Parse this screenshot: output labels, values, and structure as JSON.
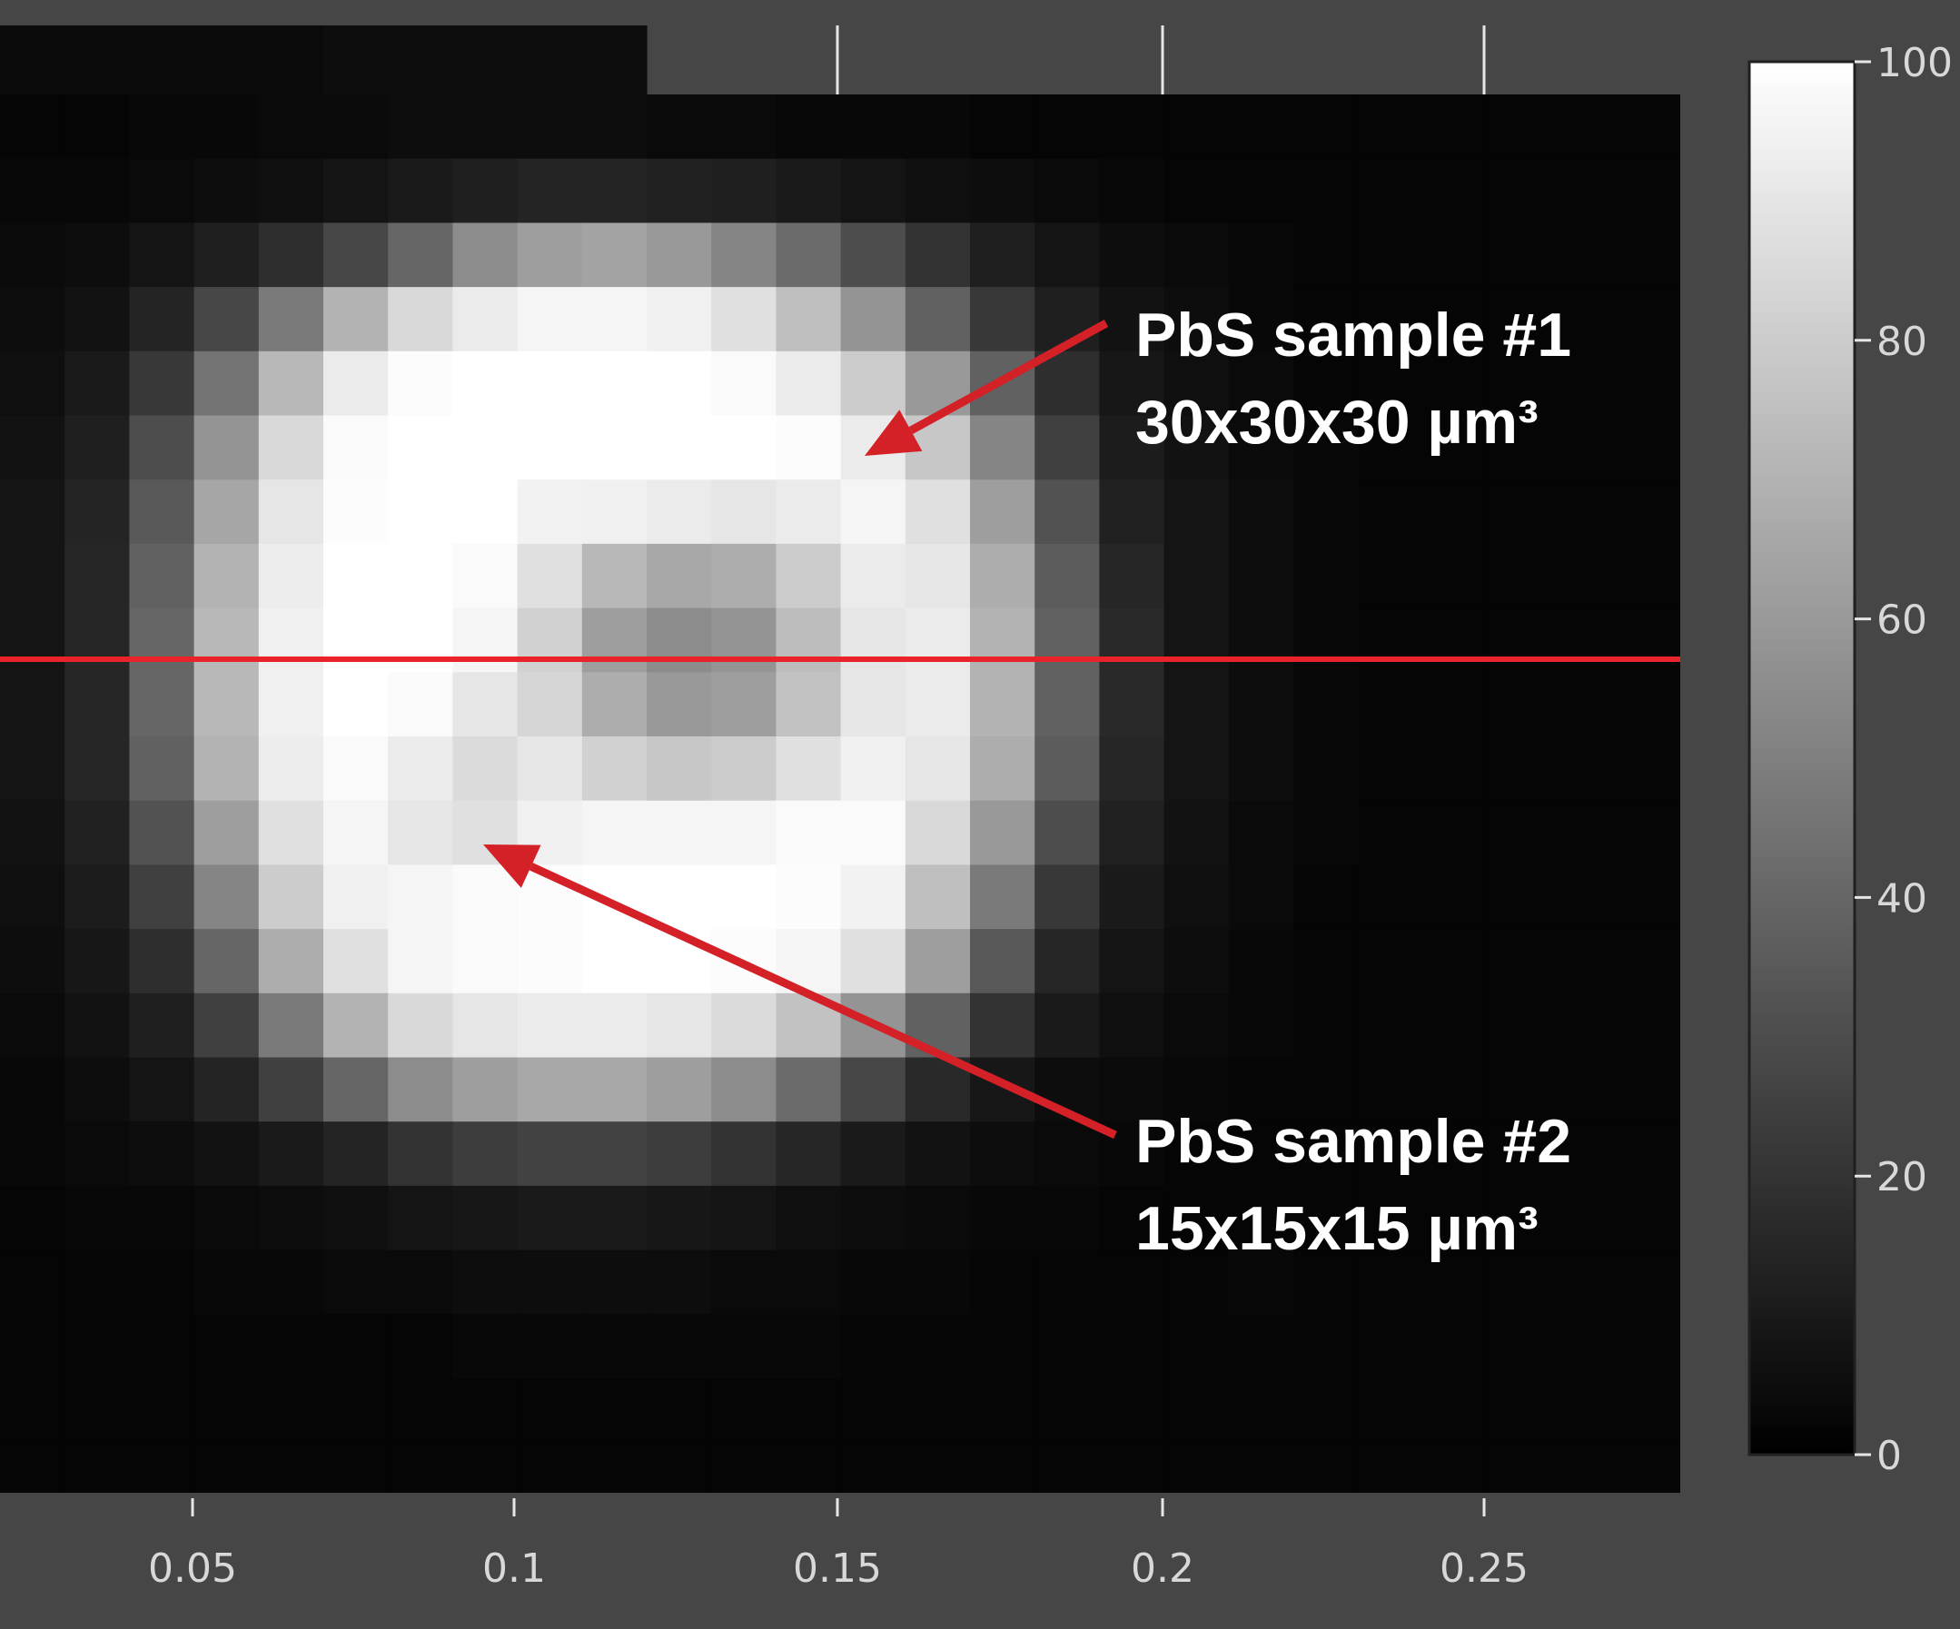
{
  "chart_data": {
    "type": "heatmap",
    "colormap": "gray",
    "background_color": "#464646",
    "xlim": [
      0.0,
      0.28
    ],
    "x_ticks": [
      "0.05",
      "0.1",
      "0.15",
      "0.2",
      "0.25"
    ],
    "colorbar": {
      "range": [
        0,
        100
      ],
      "ticks": [
        "0",
        "20",
        "40",
        "60",
        "80",
        "100"
      ]
    },
    "grid": {
      "cols": 26,
      "rows": 22,
      "values": [
        [
          2,
          2,
          3,
          3,
          4,
          4,
          5,
          5,
          5,
          5,
          4,
          4,
          3,
          3,
          3,
          2,
          2,
          2,
          2,
          2,
          2,
          2,
          2,
          2,
          2,
          2
        ],
        [
          3,
          3,
          4,
          5,
          6,
          8,
          10,
          12,
          14,
          14,
          13,
          12,
          10,
          8,
          6,
          5,
          4,
          3,
          2,
          2,
          2,
          2,
          2,
          2,
          2,
          2
        ],
        [
          4,
          5,
          8,
          12,
          18,
          28,
          40,
          55,
          62,
          64,
          60,
          52,
          42,
          30,
          20,
          12,
          8,
          5,
          4,
          3,
          2,
          2,
          2,
          2,
          2,
          2
        ],
        [
          5,
          7,
          14,
          28,
          48,
          70,
          85,
          92,
          96,
          96,
          94,
          88,
          75,
          58,
          38,
          22,
          12,
          7,
          5,
          3,
          2,
          2,
          2,
          2,
          2,
          2
        ],
        [
          6,
          10,
          22,
          45,
          72,
          92,
          99,
          100,
          100,
          100,
          100,
          98,
          92,
          80,
          60,
          38,
          18,
          9,
          6,
          4,
          2,
          2,
          2,
          2,
          2,
          2
        ],
        [
          7,
          12,
          30,
          58,
          85,
          98,
          100,
          100,
          100,
          100,
          100,
          100,
          99,
          92,
          78,
          52,
          25,
          11,
          7,
          4,
          3,
          2,
          2,
          2,
          2,
          2
        ],
        [
          8,
          14,
          35,
          65,
          90,
          99,
          100,
          100,
          95,
          94,
          92,
          90,
          92,
          96,
          88,
          62,
          32,
          13,
          8,
          5,
          3,
          2,
          2,
          2,
          2,
          2
        ],
        [
          8,
          15,
          38,
          70,
          93,
          100,
          100,
          98,
          88,
          72,
          66,
          68,
          80,
          92,
          90,
          68,
          36,
          15,
          8,
          5,
          3,
          2,
          2,
          2,
          2,
          2
        ],
        [
          8,
          15,
          40,
          72,
          94,
          100,
          100,
          96,
          82,
          62,
          55,
          58,
          74,
          90,
          92,
          70,
          38,
          16,
          8,
          5,
          3,
          2,
          2,
          2,
          2,
          2
        ],
        [
          8,
          15,
          40,
          72,
          94,
          100,
          98,
          90,
          84,
          68,
          60,
          62,
          76,
          90,
          92,
          70,
          38,
          16,
          8,
          5,
          3,
          2,
          2,
          2,
          2,
          2
        ],
        [
          8,
          15,
          38,
          70,
          93,
          98,
          92,
          86,
          90,
          82,
          78,
          80,
          88,
          94,
          90,
          68,
          36,
          15,
          8,
          5,
          3,
          2,
          2,
          2,
          2,
          2
        ],
        [
          7,
          13,
          32,
          62,
          88,
          96,
          90,
          88,
          94,
          96,
          96,
          96,
          98,
          98,
          85,
          60,
          30,
          13,
          7,
          4,
          3,
          2,
          2,
          2,
          2,
          2
        ],
        [
          6,
          11,
          25,
          52,
          80,
          94,
          96,
          98,
          99,
          100,
          100,
          100,
          99,
          95,
          75,
          48,
          22,
          10,
          6,
          4,
          2,
          2,
          2,
          2,
          2,
          2
        ],
        [
          5,
          9,
          18,
          40,
          68,
          88,
          96,
          98,
          99,
          100,
          100,
          99,
          96,
          88,
          62,
          35,
          15,
          8,
          5,
          3,
          2,
          2,
          2,
          2,
          2,
          2
        ],
        [
          4,
          7,
          12,
          25,
          48,
          70,
          85,
          90,
          92,
          92,
          90,
          86,
          76,
          58,
          38,
          20,
          10,
          6,
          4,
          3,
          2,
          2,
          2,
          2,
          2,
          2
        ],
        [
          3,
          5,
          8,
          14,
          25,
          40,
          55,
          62,
          66,
          66,
          62,
          55,
          42,
          28,
          16,
          9,
          5,
          4,
          3,
          2,
          2,
          2,
          2,
          2,
          2,
          2
        ],
        [
          3,
          4,
          5,
          7,
          10,
          14,
          20,
          24,
          26,
          26,
          24,
          20,
          15,
          10,
          7,
          5,
          4,
          3,
          2,
          2,
          2,
          2,
          2,
          2,
          2,
          2
        ],
        [
          2,
          3,
          3,
          4,
          5,
          6,
          8,
          9,
          10,
          10,
          9,
          8,
          6,
          5,
          4,
          3,
          3,
          2,
          2,
          2,
          2,
          2,
          2,
          2,
          2,
          2
        ],
        [
          2,
          2,
          2,
          3,
          3,
          4,
          4,
          5,
          5,
          5,
          5,
          4,
          4,
          3,
          3,
          2,
          2,
          2,
          2,
          3,
          2,
          2,
          2,
          2,
          2,
          2
        ],
        [
          2,
          2,
          2,
          2,
          2,
          2,
          2,
          3,
          3,
          3,
          3,
          3,
          3,
          2,
          2,
          2,
          2,
          2,
          2,
          2,
          2,
          2,
          2,
          2,
          2,
          2
        ],
        [
          2,
          2,
          2,
          2,
          2,
          2,
          2,
          2,
          2,
          2,
          2,
          2,
          2,
          2,
          2,
          2,
          2,
          2,
          2,
          2,
          2,
          2,
          2,
          2,
          2,
          2
        ],
        [
          2,
          2,
          2,
          2,
          2,
          2,
          2,
          2,
          2,
          2,
          2,
          2,
          2,
          2,
          2,
          2,
          2,
          2,
          2,
          2,
          2,
          2,
          2,
          2,
          2,
          2
        ]
      ]
    },
    "top_strip": {
      "visible_cols": 10,
      "values": [
        4,
        4,
        4,
        4,
        4,
        5,
        5,
        5,
        5,
        5
      ]
    },
    "line_color": "#e8232a",
    "arrow_color": "#d42027",
    "annotations": [
      {
        "lines": [
          "PbS sample #1",
          "30x30x30 µm³"
        ]
      },
      {
        "lines": [
          "PbS sample #2",
          "15x15x15 µm³"
        ]
      }
    ]
  }
}
